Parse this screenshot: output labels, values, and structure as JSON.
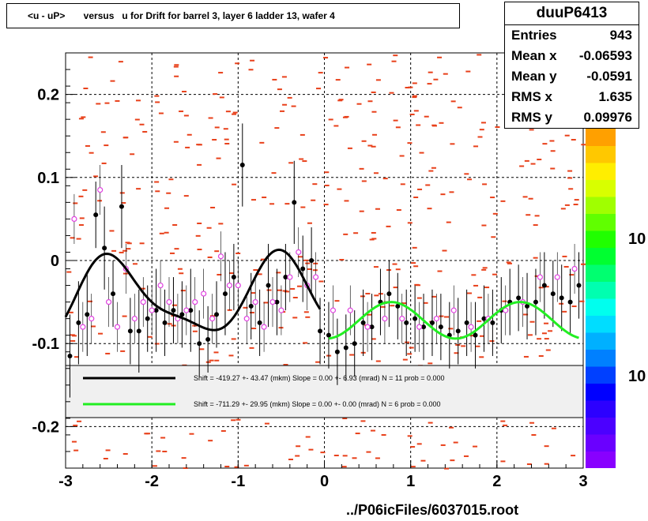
{
  "title": "<u - uP>       versus   u for Drift for barrel 3, layer 6 ladder 13, wafer 4",
  "stats": {
    "name": "duuP6413",
    "rows": [
      {
        "label": "Entries",
        "value": "943"
      },
      {
        "label": "Mean x",
        "value": "-0.06593"
      },
      {
        "label": "Mean y",
        "value": "-0.0591"
      },
      {
        "label": "RMS x",
        "value": "1.635"
      },
      {
        "label": "RMS y",
        "value": "0.09976"
      }
    ]
  },
  "legend": {
    "fit1": "Shift =  -419.27 +- 43.47 (mkm) Slope =     0.00 +- 6.93 (mrad)  N = 11 prob = 0.000",
    "fit2": "Shift =  -711.29 +- 29.95 (mkm) Slope =     0.00 +- 0.00 (mrad)  N = 6 prob = 0.000",
    "fit1_color": "#000000",
    "fit2_color": "#22ee22"
  },
  "palette_labels": [
    "10",
    "10"
  ],
  "footer": "../P06icFiles/6037015.root",
  "colors": {
    "scatter": "#e8401a",
    "markers_black": "#000000",
    "markers_open": "#e040e0"
  },
  "chart_data": {
    "type": "scatter",
    "xlim": [
      -3,
      3
    ],
    "ylim": [
      -0.25,
      0.25
    ],
    "x_ticks": [
      -3,
      -2,
      -1,
      0,
      1,
      2,
      3
    ],
    "y_ticks": [
      -0.2,
      -0.1,
      0,
      0.1,
      0.2
    ],
    "grid": true,
    "series": [
      {
        "kind": "profile-black",
        "x": [
          -2.95,
          -2.85,
          -2.75,
          -2.65,
          -2.55,
          -2.45,
          -2.35,
          -2.25,
          -2.15,
          -2.05,
          -1.95,
          -1.85,
          -1.75,
          -1.65,
          -1.55,
          -1.45,
          -1.35,
          -1.25,
          -1.15,
          -1.05,
          -0.95,
          -0.85,
          -0.75,
          -0.65,
          -0.55,
          -0.45,
          -0.35,
          -0.25,
          -0.15,
          -0.05
        ],
        "y": [
          -0.115,
          -0.075,
          -0.065,
          0.055,
          0.015,
          -0.04,
          0.065,
          -0.085,
          -0.085,
          -0.07,
          -0.06,
          -0.075,
          -0.06,
          -0.065,
          -0.06,
          -0.1,
          -0.095,
          -0.065,
          -0.04,
          -0.02,
          0.115,
          -0.055,
          -0.075,
          -0.03,
          -0.05,
          -0.02,
          0.07,
          -0.01,
          0.0,
          -0.085
        ],
        "err": [
          0.05,
          0.05,
          0.05,
          0.04,
          0.05,
          0.04,
          0.05,
          0.04,
          0.05,
          0.04,
          0.05,
          0.04,
          0.04,
          0.04,
          0.05,
          0.04,
          0.04,
          0.04,
          0.05,
          0.04,
          0.05,
          0.04,
          0.04,
          0.05,
          0.04,
          0.04,
          0.05,
          0.04,
          0.04,
          0.04
        ]
      },
      {
        "kind": "profile-black-right",
        "x": [
          0.05,
          0.15,
          0.25,
          0.35,
          0.45,
          0.55,
          0.65,
          0.75,
          0.85,
          0.95,
          1.05,
          1.15,
          1.25,
          1.35,
          1.45,
          1.55,
          1.65,
          1.75,
          1.85,
          1.95,
          2.05,
          2.15,
          2.25,
          2.35,
          2.45,
          2.55,
          2.65,
          2.75,
          2.85,
          2.95
        ],
        "y": [
          -0.09,
          -0.11,
          -0.105,
          -0.1,
          -0.075,
          -0.08,
          -0.05,
          -0.04,
          -0.055,
          -0.075,
          -0.07,
          -0.08,
          -0.075,
          -0.08,
          -0.09,
          -0.085,
          -0.075,
          -0.09,
          -0.07,
          -0.075,
          -0.06,
          -0.05,
          -0.045,
          -0.055,
          -0.05,
          -0.03,
          -0.04,
          -0.045,
          -0.05,
          -0.03
        ],
        "err": [
          0.04,
          0.04,
          0.04,
          0.04,
          0.04,
          0.04,
          0.04,
          0.04,
          0.04,
          0.04,
          0.04,
          0.04,
          0.04,
          0.04,
          0.04,
          0.04,
          0.04,
          0.04,
          0.04,
          0.04,
          0.04,
          0.04,
          0.04,
          0.04,
          0.04,
          0.04,
          0.04,
          0.04,
          0.04,
          0.04
        ]
      },
      {
        "kind": "open-markers",
        "x": [
          -2.9,
          -2.8,
          -2.7,
          -2.6,
          -2.5,
          -2.4,
          -2.3,
          -2.2,
          -2.1,
          -2.0,
          -1.9,
          -1.8,
          -1.7,
          -1.6,
          -1.5,
          -1.4,
          -1.3,
          -1.2,
          -1.1,
          -1.0,
          -0.9,
          -0.8,
          -0.7,
          -0.6,
          -0.5,
          -0.4,
          -0.3,
          -0.2,
          -0.1,
          0.1,
          0.3,
          0.5,
          0.7,
          0.9,
          1.1,
          1.3,
          1.5,
          1.7,
          1.9,
          2.1,
          2.3,
          2.5,
          2.7,
          2.9
        ],
        "y": [
          0.05,
          -0.08,
          -0.07,
          0.085,
          -0.05,
          -0.08,
          -0.01,
          -0.07,
          -0.05,
          -0.06,
          -0.03,
          -0.05,
          -0.07,
          -0.06,
          -0.05,
          -0.04,
          -0.07,
          0.005,
          -0.03,
          -0.03,
          -0.07,
          -0.05,
          -0.08,
          -0.05,
          -0.06,
          -0.02,
          0.01,
          -0.03,
          -0.02,
          -0.06,
          -0.06,
          -0.08,
          -0.07,
          -0.07,
          -0.08,
          -0.07,
          -0.06,
          -0.08,
          -0.07,
          -0.06,
          -0.05,
          -0.02,
          -0.02,
          -0.01
        ]
      },
      {
        "kind": "fit-black",
        "name": "fit1",
        "x_range": [
          -3.0,
          0.0
        ]
      },
      {
        "kind": "fit-green",
        "name": "fit2",
        "x_range": [
          0.0,
          2.95
        ]
      }
    ]
  }
}
